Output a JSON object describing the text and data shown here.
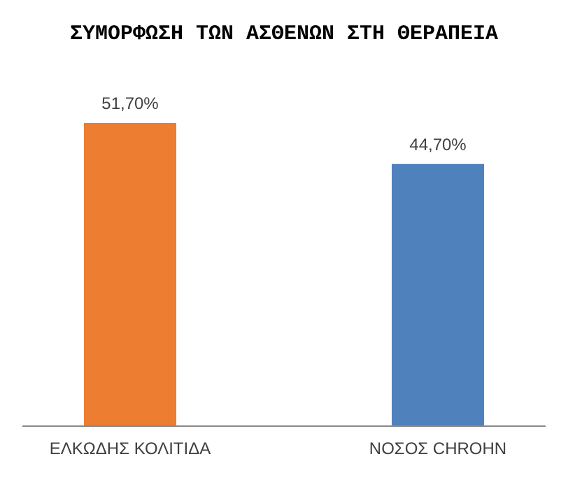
{
  "chart_data": {
    "type": "bar",
    "title": "ΣΥΜΟΡΦΩΣΗ ΤΩΝ ΑΣΘΕΝΩΝ ΣΤΗ ΘΕΡΑΠΕΙΑ",
    "categories": [
      "ΕΛΚΩΔΗΣ ΚΟΛΙΤΙΔΑ",
      "ΝΟΣΟΣ CHROHN"
    ],
    "values": [
      51.7,
      44.7
    ],
    "colors": [
      "#ed7d31",
      "#4f81bd"
    ],
    "value_labels": [
      "51,70%",
      "44,70%"
    ],
    "tick_labels": "x"
  }
}
